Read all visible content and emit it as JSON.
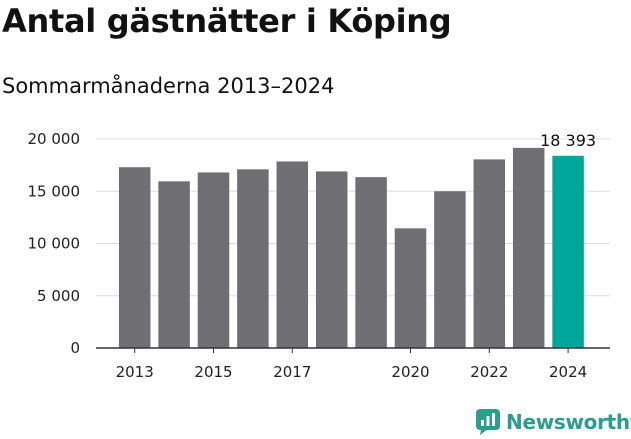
{
  "chart_data": {
    "type": "bar",
    "title": "Antal gästnätter i Köping",
    "subtitle": "Sommarmånaderna 2013–2024",
    "categories": [
      "2013",
      "2014",
      "2015",
      "2016",
      "2017",
      "2018",
      "2019",
      "2020",
      "2021",
      "2022",
      "2023",
      "2024"
    ],
    "x_tick_labels": [
      "2013",
      "",
      "2015",
      "",
      "2017",
      "",
      "",
      "2020",
      "",
      "2022",
      "",
      "2024"
    ],
    "values": [
      17300,
      15950,
      16800,
      17100,
      17850,
      16900,
      16350,
      11450,
      15000,
      18050,
      19150,
      18393
    ],
    "highlight_index": 11,
    "highlight_label": "18 393",
    "yticks": [
      0,
      5000,
      10000,
      15000,
      20000
    ],
    "ytick_labels": [
      "0",
      "5 000",
      "10 000",
      "15 000",
      "20 000"
    ],
    "ylim": [
      0,
      20000
    ],
    "grid": true,
    "colors": {
      "bar": "#6f6e72",
      "highlight": "#00a699",
      "grid": "#dddddd",
      "axis": "#333333"
    }
  },
  "brand": {
    "name": "Newsworthy",
    "color": "#2a9d8f"
  }
}
